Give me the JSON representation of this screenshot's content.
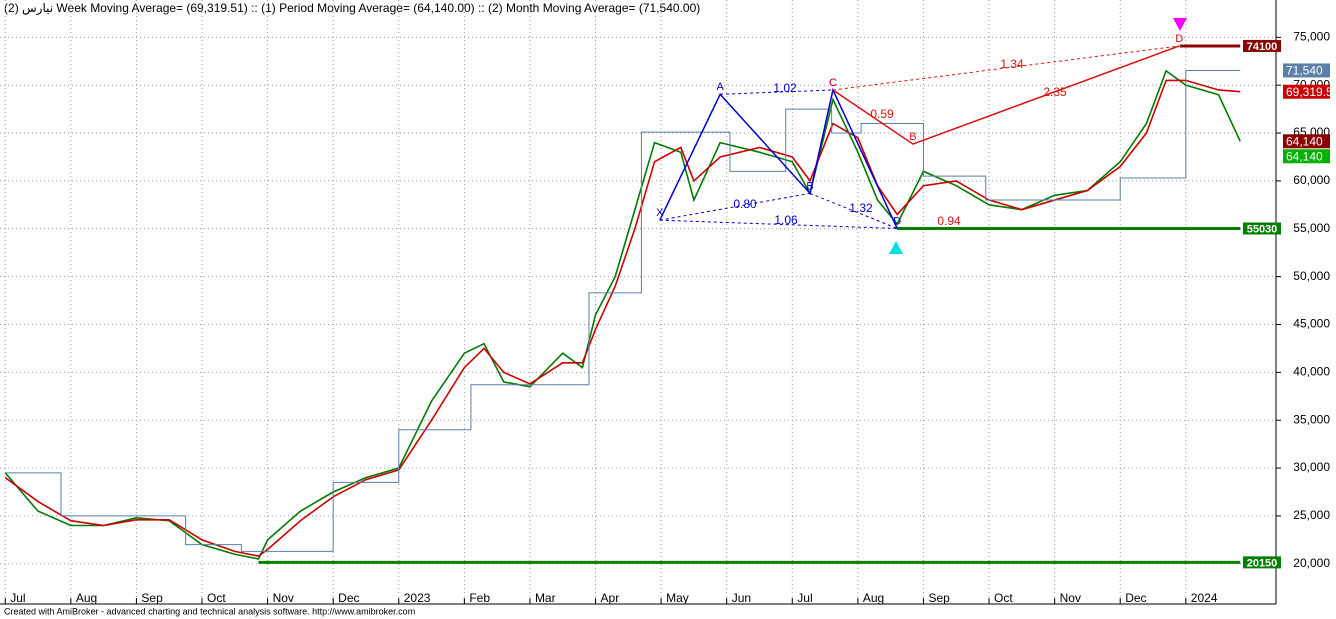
{
  "chart_data": {
    "type": "line",
    "title": "نیارس (2) Week Moving Average= (69,319.51) :: (1) Period Moving Average= (64,140.00) :: (2) Month Moving Average= (71,540.00)",
    "footer": "Created with AmiBroker - advanced charting and technical analysis software. http://www.amibroker.com",
    "xlim": [
      -0.08,
      19.36
    ],
    "ylim": [
      15800,
      78900
    ],
    "grid": true,
    "xticks": [
      {
        "value": 0,
        "label": "Jul"
      },
      {
        "value": 1,
        "label": "Aug"
      },
      {
        "value": 2,
        "label": "Sep"
      },
      {
        "value": 3,
        "label": "Oct"
      },
      {
        "value": 4,
        "label": "Nov"
      },
      {
        "value": 5,
        "label": "Dec"
      },
      {
        "value": 6,
        "label": "2023"
      },
      {
        "value": 7,
        "label": "Feb"
      },
      {
        "value": 8,
        "label": "Mar"
      },
      {
        "value": 9,
        "label": "Apr"
      },
      {
        "value": 10,
        "label": "May"
      },
      {
        "value": 11,
        "label": "Jun"
      },
      {
        "value": 12,
        "label": "Jul"
      },
      {
        "value": 13,
        "label": "Aug"
      },
      {
        "value": 14,
        "label": "Sep"
      },
      {
        "value": 15,
        "label": "Oct"
      },
      {
        "value": 16,
        "label": "Nov"
      },
      {
        "value": 17,
        "label": "Dec"
      },
      {
        "value": 18,
        "label": "2024"
      }
    ],
    "yticks": [
      {
        "value": 20000,
        "label": "20,000"
      },
      {
        "value": 25000,
        "label": "25,000"
      },
      {
        "value": 30000,
        "label": "30,000"
      },
      {
        "value": 35000,
        "label": "35,000"
      },
      {
        "value": 40000,
        "label": "40,000"
      },
      {
        "value": 45000,
        "label": "45,000"
      },
      {
        "value": 50000,
        "label": "50,000"
      },
      {
        "value": 55000,
        "label": "55,000"
      },
      {
        "value": 60000,
        "label": "60,000"
      },
      {
        "value": 65000,
        "label": "65,000"
      },
      {
        "value": 70000,
        "label": "70,000"
      },
      {
        "value": 75000,
        "label": "75,000"
      }
    ],
    "series": [
      {
        "color": "#007a00",
        "x": [
          0,
          0.5,
          1,
          1.5,
          2,
          2.5,
          3,
          3.5,
          3.86,
          4,
          4.5,
          5,
          5.5,
          6,
          6.5,
          7,
          7.3,
          7.6,
          8,
          8.5,
          8.8,
          9,
          9.3,
          9.6,
          9.9,
          10.3,
          10.5,
          10.9,
          11.5,
          12,
          12.27,
          12.62,
          13,
          13.3,
          13.6,
          14,
          14.5,
          15,
          15.5,
          16,
          16.5,
          17,
          17.4,
          17.7,
          18,
          18.5,
          18.83
        ],
        "values": [
          29500,
          25500,
          24000,
          24000,
          24800,
          24500,
          22000,
          21000,
          20500,
          22500,
          25500,
          27500,
          29000,
          30000,
          37000,
          42000,
          43000,
          39000,
          38500,
          42000,
          40500,
          46000,
          50000,
          57000,
          64000,
          63000,
          58000,
          64000,
          63000,
          62000,
          58700,
          68500,
          63000,
          58000,
          55500,
          61000,
          59500,
          57500,
          57000,
          58500,
          59000,
          62000,
          66000,
          71500,
          70000,
          69000,
          64140
        ]
      },
      {
        "color": "#cc0000",
        "x": [
          0,
          0.5,
          1,
          1.5,
          2,
          2.5,
          3,
          3.5,
          3.86,
          4,
          4.5,
          5,
          5.5,
          6,
          6.5,
          7,
          7.3,
          7.6,
          8,
          8.5,
          8.8,
          9,
          9.3,
          9.6,
          9.9,
          10.3,
          10.5,
          10.9,
          11.5,
          12,
          12.27,
          12.62,
          13,
          13.3,
          13.6,
          14,
          14.5,
          15,
          15.5,
          16,
          16.5,
          17,
          17.4,
          17.7,
          18,
          18.5,
          18.83
        ],
        "values": [
          29000,
          26500,
          24500,
          24000,
          24600,
          24600,
          22500,
          21300,
          20800,
          21500,
          24500,
          27000,
          28800,
          29800,
          35000,
          40500,
          42500,
          40000,
          38800,
          41000,
          41000,
          44500,
          49000,
          55000,
          62000,
          63500,
          60000,
          62500,
          63500,
          62500,
          60000,
          66000,
          64500,
          59500,
          56500,
          59500,
          60000,
          58000,
          57000,
          58000,
          59000,
          61500,
          65000,
          70500,
          70500,
          69500,
          69320
        ]
      },
      {
        "color": "#5b7fa8",
        "step": true,
        "x": [
          0,
          0.85,
          2.75,
          3.6,
          5.0,
          6.0,
          7.1,
          8.9,
          9.7,
          11.05,
          11.9,
          12.6,
          13.05,
          14.0,
          14.95,
          17.0,
          18.0,
          18.83
        ],
        "values": [
          29500,
          25000,
          22000,
          21300,
          28500,
          34000,
          38700,
          48300,
          65100,
          61000,
          67500,
          65000,
          66000,
          60500,
          58000,
          60300,
          71540,
          71540
        ]
      }
    ],
    "levels": [
      {
        "value": 74100,
        "label": "74100",
        "color": "#8b0000",
        "x": [
          17.91,
          18.83
        ]
      },
      {
        "value": 55030,
        "label": "55030",
        "color": "#008000",
        "x": [
          13.6,
          18.83
        ]
      },
      {
        "value": 20150,
        "label": "20150",
        "color": "#008000",
        "x": [
          3.86,
          18.83
        ]
      }
    ],
    "tags": [
      {
        "value": 71540,
        "label": "71,540",
        "color": "#5b7fa8"
      },
      {
        "value": 69319.5,
        "label": "69,319.5",
        "color": "#cc0000"
      },
      {
        "value": 64140,
        "label": "64,140",
        "color": "#8b0000"
      },
      {
        "value": 64140,
        "label": "64,140",
        "color": "#00b000"
      }
    ],
    "patterns": [
      {
        "color": "#0000cc",
        "points": [
          {
            "label": "X",
            "x": 9.98,
            "y": 55900
          },
          {
            "label": "A",
            "x": 10.9,
            "y": 69050
          },
          {
            "label": "B",
            "x": 12.27,
            "y": 58700
          },
          {
            "label": "C",
            "x": 12.62,
            "y": 69500
          },
          {
            "label": "D",
            "x": 13.6,
            "y": 55030
          }
        ],
        "ratios": [
          "1.02",
          "0.80",
          "1.06",
          "1.32"
        ]
      },
      {
        "color": "#dd1111",
        "points": [
          {
            "label": "C",
            "x": 12.62,
            "y": 69500
          },
          {
            "label": "B",
            "x": 13.84,
            "y": 63850
          },
          {
            "label": "D",
            "x": 17.9,
            "y": 74100
          }
        ],
        "ratios": [
          "0.59",
          "1.34",
          "2.35",
          "0.94"
        ]
      }
    ]
  }
}
